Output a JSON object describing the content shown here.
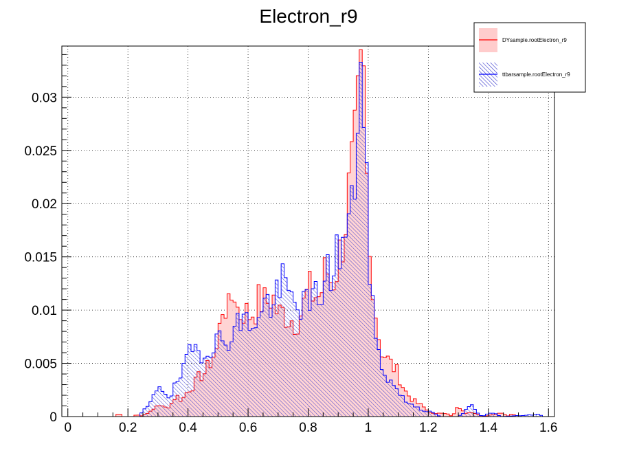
{
  "chart_data": {
    "type": "histogram",
    "title": "Electron_r9",
    "xlabel": "",
    "ylabel": "",
    "xlim": [
      -0.02,
      1.62
    ],
    "ylim": [
      0,
      0.0348
    ],
    "bin_width": 0.01,
    "x_ticks": [
      "0",
      "0.2",
      "0.4",
      "0.6",
      "0.8",
      "1",
      "1.2",
      "1.4",
      "1.6"
    ],
    "x_tick_values": [
      0,
      0.2,
      0.4,
      0.6,
      0.8,
      1.0,
      1.2,
      1.4,
      1.6
    ],
    "y_ticks": [
      "0",
      "0.005",
      "0.01",
      "0.015",
      "0.02",
      "0.025",
      "0.03"
    ],
    "y_tick_values": [
      0,
      0.005,
      0.01,
      0.015,
      0.02,
      0.025,
      0.03
    ],
    "grid": true,
    "legend_position": "top-right",
    "series": [
      {
        "name": "DYsample.rootElectron_r9",
        "color": "#ff0000",
        "fill": "#ffcccc",
        "anchors": [
          [
            0.16,
            0
          ],
          [
            0.17,
            0.0004
          ],
          [
            0.18,
            0
          ],
          [
            0.22,
            0
          ],
          [
            0.23,
            0.0003
          ],
          [
            0.24,
            0
          ],
          [
            0.26,
            0.0003
          ],
          [
            0.28,
            0.0005
          ],
          [
            0.3,
            0.0012
          ],
          [
            0.32,
            0.0008
          ],
          [
            0.34,
            0.001
          ],
          [
            0.36,
            0.002
          ],
          [
            0.38,
            0.0015
          ],
          [
            0.4,
            0.0025
          ],
          [
            0.42,
            0.003
          ],
          [
            0.44,
            0.0038
          ],
          [
            0.46,
            0.0042
          ],
          [
            0.48,
            0.0055
          ],
          [
            0.5,
            0.0065
          ],
          [
            0.51,
            0.01
          ],
          [
            0.52,
            0.0108
          ],
          [
            0.54,
            0.0095
          ],
          [
            0.55,
            0.0128
          ],
          [
            0.57,
            0.0092
          ],
          [
            0.58,
            0.0102
          ],
          [
            0.6,
            0.0095
          ],
          [
            0.62,
            0.01
          ],
          [
            0.64,
            0.011
          ],
          [
            0.66,
            0.0105
          ],
          [
            0.68,
            0.0115
          ],
          [
            0.7,
            0.0095
          ],
          [
            0.72,
            0.0098
          ],
          [
            0.74,
            0.0092
          ],
          [
            0.76,
            0.009
          ],
          [
            0.78,
            0.01
          ],
          [
            0.8,
            0.0118
          ],
          [
            0.82,
            0.0115
          ],
          [
            0.84,
            0.0112
          ],
          [
            0.86,
            0.014
          ],
          [
            0.88,
            0.0125
          ],
          [
            0.9,
            0.0145
          ],
          [
            0.92,
            0.0175
          ],
          [
            0.94,
            0.022
          ],
          [
            0.96,
            0.0255
          ],
          [
            0.97,
            0.03
          ],
          [
            0.98,
            0.031
          ],
          [
            0.99,
            0.0295
          ],
          [
            1.0,
            0.014
          ],
          [
            1.01,
            0.0155
          ],
          [
            1.02,
            0.011
          ],
          [
            1.04,
            0.0065
          ],
          [
            1.06,
            0.0055
          ],
          [
            1.08,
            0.0048
          ],
          [
            1.1,
            0.004
          ],
          [
            1.12,
            0.0025
          ],
          [
            1.14,
            0.0018
          ],
          [
            1.16,
            0.0013
          ],
          [
            1.18,
            0.001
          ],
          [
            1.2,
            0.0005
          ],
          [
            1.22,
            0.0002
          ],
          [
            1.24,
            0.0004
          ],
          [
            1.26,
            0.0003
          ],
          [
            1.28,
            0
          ],
          [
            1.3,
            0.001
          ],
          [
            1.32,
            0.0003
          ],
          [
            1.34,
            0.0005
          ],
          [
            1.36,
            0.0003
          ],
          [
            1.38,
            0
          ],
          [
            1.45,
            0.0004
          ],
          [
            1.46,
            0
          ],
          [
            1.48,
            0.0003
          ],
          [
            1.49,
            0
          ]
        ],
        "noise_seed": 7
      },
      {
        "name": "ttbarsample.rootElectron_r9",
        "color": "#0000ff",
        "fill": "#6666dd",
        "anchors": [
          [
            0.24,
            0
          ],
          [
            0.25,
            0.0006
          ],
          [
            0.27,
            0.001
          ],
          [
            0.28,
            0.0015
          ],
          [
            0.3,
            0.003
          ],
          [
            0.32,
            0.0025
          ],
          [
            0.34,
            0.0018
          ],
          [
            0.36,
            0.003
          ],
          [
            0.38,
            0.004
          ],
          [
            0.4,
            0.0055
          ],
          [
            0.42,
            0.0065
          ],
          [
            0.44,
            0.0062
          ],
          [
            0.46,
            0.006
          ],
          [
            0.48,
            0.007
          ],
          [
            0.5,
            0.0072
          ],
          [
            0.52,
            0.0068
          ],
          [
            0.54,
            0.0078
          ],
          [
            0.56,
            0.0085
          ],
          [
            0.58,
            0.009
          ],
          [
            0.6,
            0.0088
          ],
          [
            0.62,
            0.0092
          ],
          [
            0.64,
            0.009
          ],
          [
            0.66,
            0.011
          ],
          [
            0.68,
            0.0105
          ],
          [
            0.7,
            0.0115
          ],
          [
            0.72,
            0.0125
          ],
          [
            0.74,
            0.011
          ],
          [
            0.76,
            0.0105
          ],
          [
            0.78,
            0.011
          ],
          [
            0.8,
            0.01
          ],
          [
            0.82,
            0.011
          ],
          [
            0.84,
            0.0118
          ],
          [
            0.86,
            0.013
          ],
          [
            0.88,
            0.014
          ],
          [
            0.9,
            0.0155
          ],
          [
            0.92,
            0.0165
          ],
          [
            0.94,
            0.018
          ],
          [
            0.95,
            0.02
          ],
          [
            0.96,
            0.025
          ],
          [
            0.97,
            0.0348
          ],
          [
            0.98,
            0.03
          ],
          [
            0.99,
            0.024
          ],
          [
            1.0,
            0.0165
          ],
          [
            1.01,
            0.013
          ],
          [
            1.02,
            0.008
          ],
          [
            1.04,
            0.005
          ],
          [
            1.06,
            0.004
          ],
          [
            1.08,
            0.003
          ],
          [
            1.1,
            0.0025
          ],
          [
            1.12,
            0.0015
          ],
          [
            1.14,
            0.0012
          ],
          [
            1.16,
            0.001
          ],
          [
            1.18,
            0.0006
          ],
          [
            1.2,
            0.0005
          ],
          [
            1.22,
            0.0003
          ],
          [
            1.24,
            0
          ],
          [
            1.3,
            0
          ],
          [
            1.32,
            0.0004
          ],
          [
            1.34,
            0.0012
          ],
          [
            1.36,
            0.0004
          ],
          [
            1.38,
            0
          ],
          [
            1.4,
            0.0003
          ],
          [
            1.42,
            0.0004
          ],
          [
            1.44,
            0
          ],
          [
            1.57,
            0.0002
          ],
          [
            1.58,
            0
          ]
        ],
        "noise_seed": 19
      }
    ]
  }
}
